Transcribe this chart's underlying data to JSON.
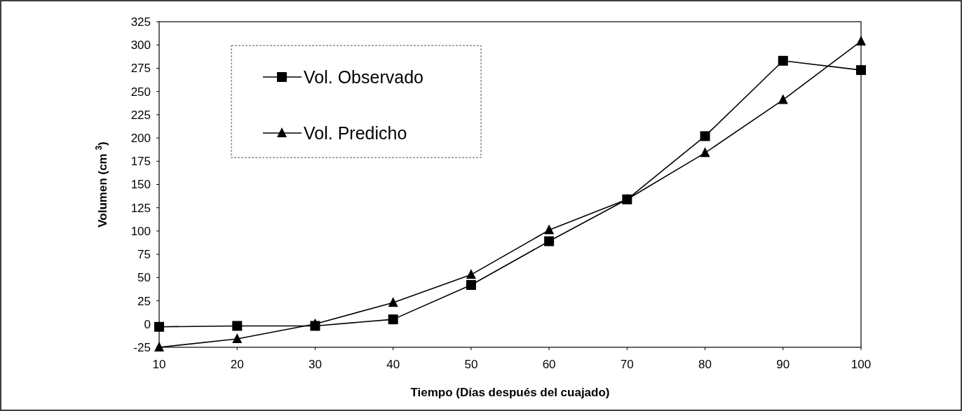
{
  "chart_data": {
    "type": "line",
    "xlabel": "Tiempo (Días después del cuajado)",
    "ylabel": "Volumen (cm $^{3}$)",
    "x": [
      10,
      20,
      30,
      40,
      50,
      60,
      70,
      80,
      90,
      100
    ],
    "series": [
      {
        "name": "Vol. Observado",
        "color": "#000000",
        "marker": "square",
        "values": [
          -3,
          -2,
          -2,
          5,
          42,
          89,
          134,
          202,
          283,
          273
        ]
      },
      {
        "name": "Vol. Predicho",
        "color": "#000000",
        "marker": "triangle",
        "values": [
          -25,
          -16,
          0,
          23,
          53,
          101,
          134,
          184,
          241,
          304
        ]
      }
    ],
    "xlim": [
      10,
      100
    ],
    "ylim": [
      -25,
      325
    ],
    "xticks": [
      10,
      20,
      30,
      40,
      50,
      60,
      70,
      80,
      90,
      100
    ],
    "yticks": [
      -25,
      0,
      25,
      50,
      75,
      100,
      125,
      150,
      175,
      200,
      225,
      250,
      275,
      300,
      325
    ],
    "grid": false,
    "legend": "top left",
    "line_style": "solid"
  }
}
